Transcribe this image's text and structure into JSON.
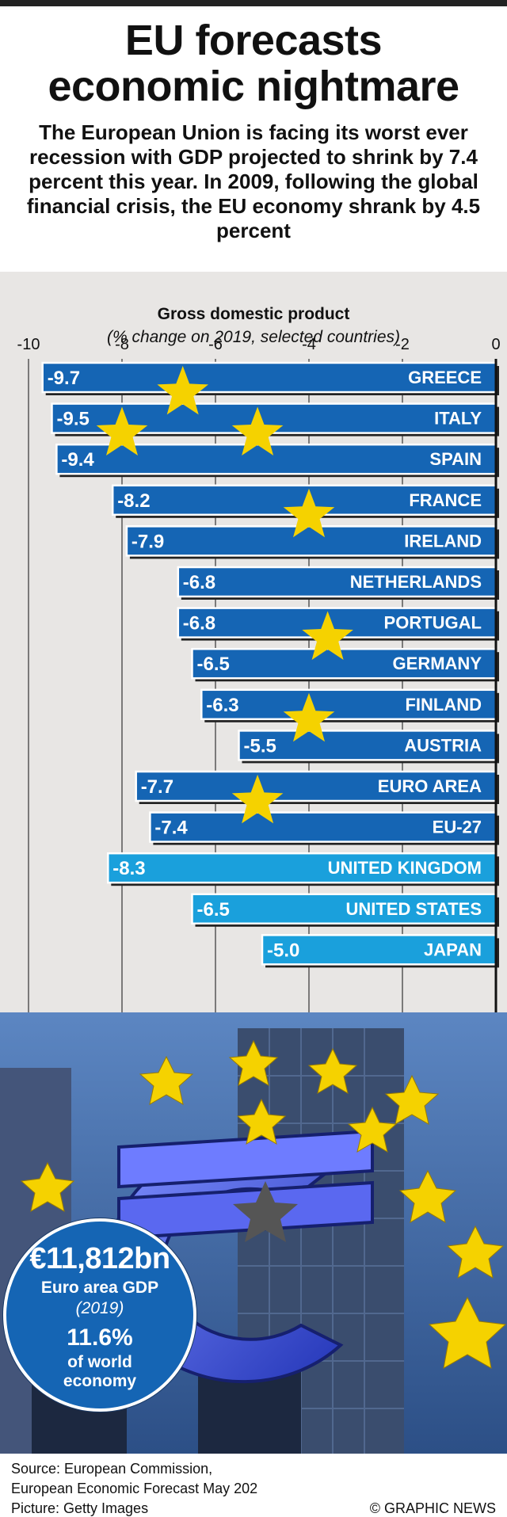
{
  "header": {
    "title_line1": "EU forecasts",
    "title_line2": "economic nightmare",
    "subtitle": "The European Union is facing its worst ever recession with GDP projected to shrink by 7.4 percent this year. In 2009, following the global financial crisis, the EU economy shrank by 4.5 percent"
  },
  "chart_data": {
    "type": "bar",
    "title": "Gross domestic product",
    "subtitle": "(% change on 2019, selected countries)",
    "xlim": [
      -10,
      0
    ],
    "ticks": [
      -10,
      -8,
      -6,
      -4,
      -2,
      0
    ],
    "categories": [
      "GREECE",
      "ITALY",
      "SPAIN",
      "FRANCE",
      "IRELAND",
      "NETHERLANDS",
      "PORTUGAL",
      "GERMANY",
      "FINLAND",
      "AUSTRIA",
      "EURO AREA",
      "EU-27",
      "UNITED KINGDOM",
      "UNITED STATES",
      "JAPAN"
    ],
    "values": [
      -9.7,
      -9.5,
      -9.4,
      -8.2,
      -7.9,
      -6.8,
      -6.8,
      -6.5,
      -6.3,
      -5.5,
      -7.7,
      -7.4,
      -8.3,
      -6.5,
      -5.0
    ],
    "labels": [
      "-9.7",
      "-9.5",
      "-9.4",
      "-8.2",
      "-7.9",
      "-6.8",
      "-6.8",
      "-6.5",
      "-6.3",
      "-5.5",
      "-7.7",
      "-7.4",
      "-8.3",
      "-6.5",
      "-5.0"
    ],
    "groups": [
      "eu",
      "eu",
      "eu",
      "eu",
      "eu",
      "eu",
      "eu",
      "eu",
      "eu",
      "eu",
      "eu",
      "eu",
      "non-eu",
      "non-eu",
      "non-eu"
    ],
    "colors": {
      "eu": "#1565b4",
      "non-eu": "#1aa0dc",
      "star": "#f5d200",
      "background": "#e8e6e4"
    },
    "grid": true
  },
  "infobox": {
    "value": "€11,812bn",
    "label": "Euro area GDP",
    "year": "(2019)",
    "share": "11.6%",
    "share_label_1": "of world",
    "share_label_2": "economy"
  },
  "footer": {
    "source_1": "Source: European Commission,",
    "source_2": "European Economic Forecast May 202",
    "picture": "Picture: Getty Images",
    "credit": "© GRAPHIC NEWS"
  },
  "photo": {
    "subject": "euro-sign-sculpture"
  }
}
